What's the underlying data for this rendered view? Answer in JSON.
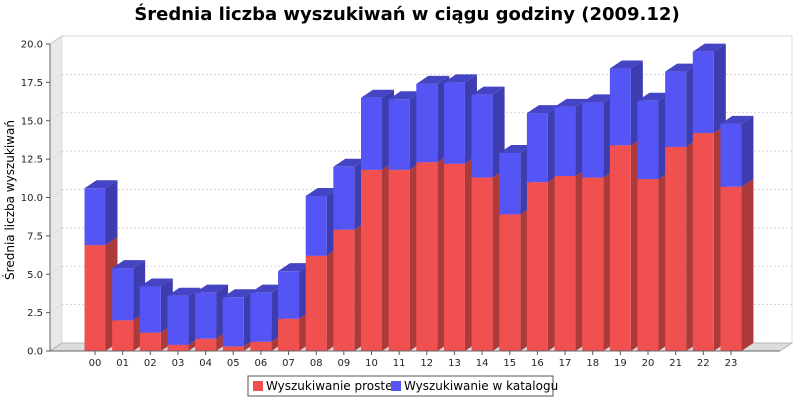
{
  "chart_data": {
    "type": "bar",
    "stacked": true,
    "three_d": true,
    "title": "Średnia liczba wyszukiwań w ciągu godziny (2009.12)",
    "xlabel": "",
    "ylabel": "Średnia liczba wyszukiwań",
    "ylim": [
      0,
      20
    ],
    "yticks": [
      "0.0",
      "2.5",
      "5.0",
      "7.5",
      "10.0",
      "12.5",
      "15.0",
      "17.5",
      "20.0"
    ],
    "categories": [
      "00",
      "01",
      "02",
      "03",
      "04",
      "05",
      "06",
      "07",
      "08",
      "09",
      "10",
      "11",
      "12",
      "13",
      "14",
      "15",
      "16",
      "17",
      "18",
      "19",
      "20",
      "21",
      "22",
      "23"
    ],
    "series": [
      {
        "name": "Wyszukiwanie proste",
        "color": "#f05050",
        "values": [
          6.9,
          2.0,
          1.2,
          0.4,
          0.8,
          0.3,
          0.6,
          2.1,
          6.2,
          7.9,
          11.8,
          11.8,
          12.3,
          12.2,
          11.3,
          8.9,
          11.0,
          11.4,
          11.3,
          13.4,
          11.2,
          13.3,
          14.2,
          10.7
        ]
      },
      {
        "name": "Wyszukiwanie w katalogu",
        "color": "#5555f5",
        "values": [
          3.7,
          3.4,
          3.0,
          3.2,
          3.0,
          3.2,
          3.2,
          3.1,
          3.9,
          4.1,
          4.7,
          4.6,
          5.1,
          5.3,
          5.4,
          4.0,
          4.5,
          4.5,
          4.9,
          5.0,
          5.1,
          4.9,
          5.3,
          4.1
        ]
      }
    ],
    "grid": true,
    "legend_position": "bottom"
  }
}
